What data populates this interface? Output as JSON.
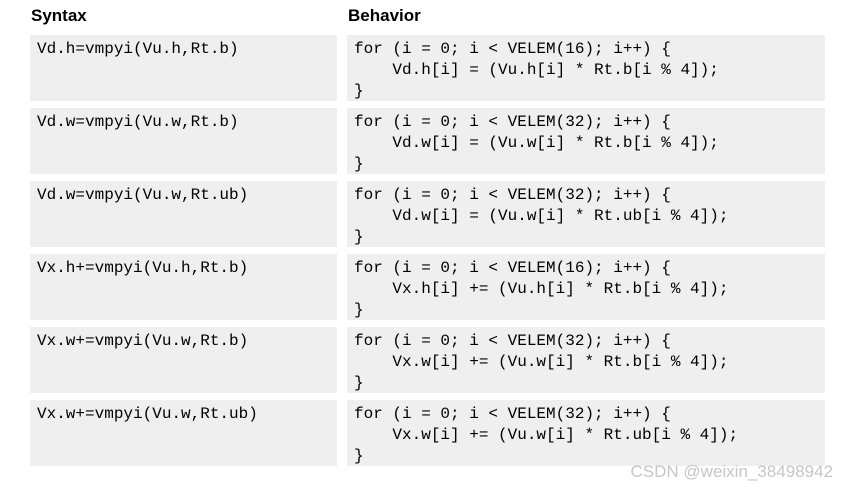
{
  "colors": {
    "page_background": "#ffffff",
    "row_background": "#efefef",
    "code_text": "#000000",
    "watermark_text": "#c6c6c6"
  },
  "table": {
    "headers": {
      "syntax": "Syntax",
      "behavior": "Behavior"
    },
    "rows": [
      {
        "syntax": "Vd.h=vmpyi(Vu.h,Rt.b)",
        "behavior": "for (i = 0; i < VELEM(16); i++) {\n    Vd.h[i] = (Vu.h[i] * Rt.b[i % 4]);\n}"
      },
      {
        "syntax": "Vd.w=vmpyi(Vu.w,Rt.b)",
        "behavior": "for (i = 0; i < VELEM(32); i++) {\n    Vd.w[i] = (Vu.w[i] * Rt.b[i % 4]);\n}"
      },
      {
        "syntax": "Vd.w=vmpyi(Vu.w,Rt.ub)",
        "behavior": "for (i = 0; i < VELEM(32); i++) {\n    Vd.w[i] = (Vu.w[i] * Rt.ub[i % 4]);\n}"
      },
      {
        "syntax": "Vx.h+=vmpyi(Vu.h,Rt.b)",
        "behavior": "for (i = 0; i < VELEM(16); i++) {\n    Vx.h[i] += (Vu.h[i] * Rt.b[i % 4]);\n}"
      },
      {
        "syntax": "Vx.w+=vmpyi(Vu.w,Rt.b)",
        "behavior": "for (i = 0; i < VELEM(32); i++) {\n    Vx.w[i] += (Vu.w[i] * Rt.b[i % 4]);\n}"
      },
      {
        "syntax": "Vx.w+=vmpyi(Vu.w,Rt.ub)",
        "behavior": "for (i = 0; i < VELEM(32); i++) {\n    Vx.w[i] += (Vu.w[i] * Rt.ub[i % 4]);\n}"
      }
    ]
  },
  "watermark": {
    "text": "CSDN @weixin_38498942"
  }
}
